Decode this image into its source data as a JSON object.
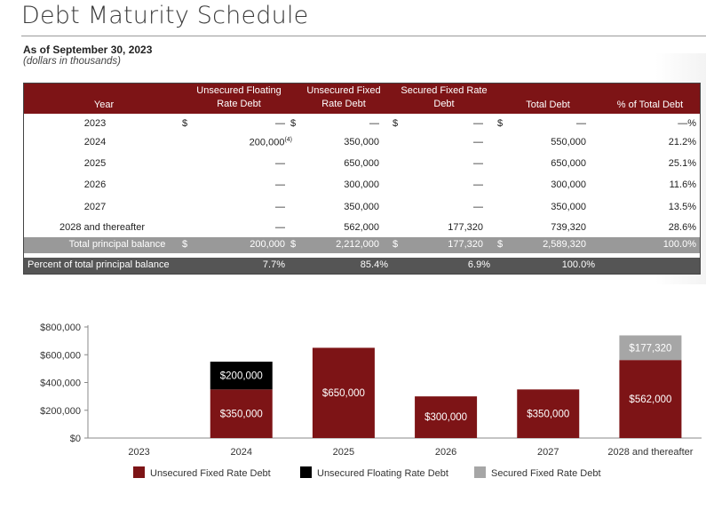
{
  "header": {
    "title": "Debt Maturity Schedule",
    "as_of": "As of September 30, 2023",
    "units": "(dollars in thousands)"
  },
  "table": {
    "headers": {
      "year": "Year",
      "floating": [
        "Unsecured Floating",
        "Rate Debt"
      ],
      "fixed": [
        "Unsecured Fixed",
        "Rate Debt"
      ],
      "secured": [
        "Secured Fixed Rate",
        "Debt"
      ],
      "total": "Total Debt",
      "pct": "% of Total Debt"
    },
    "currency": "$",
    "footnote": "(4)",
    "rows": [
      {
        "year": "2023",
        "floating": "—",
        "fixed": "—",
        "secured": "—",
        "total": "—",
        "pct": "—%"
      },
      {
        "year": "2024",
        "floating": "200,000",
        "fixed": "350,000",
        "secured": "—",
        "total": "550,000",
        "pct": "21.2%"
      },
      {
        "year": "2025",
        "floating": "—",
        "fixed": "650,000",
        "secured": "—",
        "total": "650,000",
        "pct": "25.1%"
      },
      {
        "year": "2026",
        "floating": "—",
        "fixed": "300,000",
        "secured": "—",
        "total": "300,000",
        "pct": "11.6%"
      },
      {
        "year": "2027",
        "floating": "—",
        "fixed": "350,000",
        "secured": "—",
        "total": "350,000",
        "pct": "13.5%"
      },
      {
        "year": "2028 and thereafter",
        "floating": "—",
        "fixed": "562,000",
        "secured": "177,320",
        "total": "739,320",
        "pct": "28.6%"
      }
    ],
    "total_row": {
      "label": "Total principal balance",
      "floating": "200,000",
      "fixed": "2,212,000",
      "secured": "177,320",
      "total": "2,589,320",
      "pct": "100.0%"
    },
    "percent_row": {
      "label": "Percent of total principal balance",
      "floating": "7.7%",
      "fixed": "85.4%",
      "secured": "6.9%",
      "total": "100.0%"
    }
  },
  "chart_data": {
    "type": "bar",
    "stacked": true,
    "categories": [
      "2023",
      "2024",
      "2025",
      "2026",
      "2027",
      "2028 and thereafter"
    ],
    "series": [
      {
        "name": "Unsecured Fixed Rate Debt",
        "color": "#7d1416",
        "values": [
          0,
          350000,
          650000,
          300000,
          350000,
          562000
        ],
        "labels": [
          "",
          "$350,000",
          "$650,000",
          "$300,000",
          "$350,000",
          "$562,000"
        ]
      },
      {
        "name": "Unsecured Floating Rate Debt",
        "color": "#000000",
        "values": [
          0,
          200000,
          0,
          0,
          0,
          0
        ],
        "labels": [
          "",
          "$200,000",
          "",
          "",
          "",
          ""
        ]
      },
      {
        "name": "Secured Fixed Rate Debt",
        "color": "#a6a6a6",
        "values": [
          0,
          0,
          0,
          0,
          0,
          177320
        ],
        "labels": [
          "",
          "",
          "",
          "",
          "",
          "$177,320"
        ]
      }
    ],
    "yticks": [
      "$0",
      "$200,000",
      "$400,000",
      "$600,000",
      "$800,000"
    ],
    "ytick_values": [
      0,
      200000,
      400000,
      600000,
      800000
    ],
    "ylim": [
      0,
      800000
    ],
    "legend_position": "bottom"
  }
}
